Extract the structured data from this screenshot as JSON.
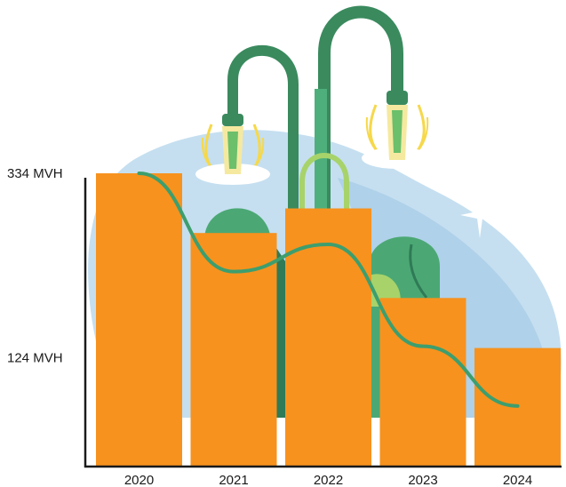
{
  "chart_data": {
    "type": "bar",
    "categories": [
      "2020",
      "2021",
      "2022",
      "2023",
      "2024"
    ],
    "values": [
      334,
      266,
      294,
      192,
      135
    ],
    "trend_line": [
      334,
      222,
      253,
      137,
      69
    ],
    "y_tick_labels": [
      {
        "value": 334,
        "label": "334 MVH"
      },
      {
        "value": 124,
        "label": "124 MVH"
      }
    ],
    "ylim": [
      0,
      334
    ],
    "grid": false,
    "legend": "none",
    "colors": {
      "bar": "#F7921E",
      "line": "#3D9E6E",
      "axis": "#1a1a1a",
      "blob": "#B9D7EC",
      "plant_dark": "#2F7A57",
      "plant_mid": "#4BA874",
      "plant_light": "#A7D36A",
      "bulb_glow": "#F6D84A"
    }
  }
}
